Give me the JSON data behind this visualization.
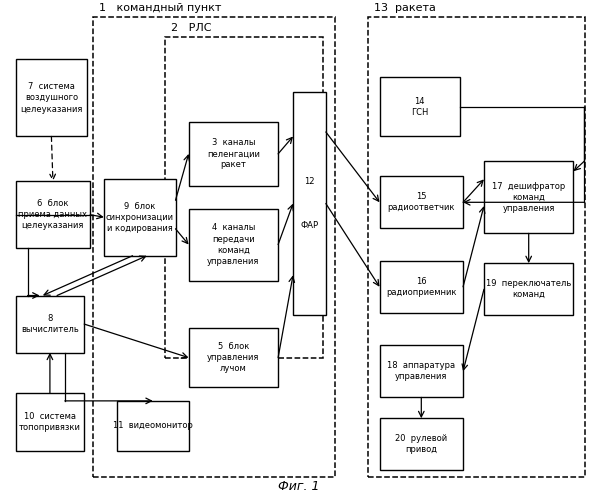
{
  "title": "Фиг. 1",
  "bg_color": "#ffffff",
  "outer_kp": [
    0.155,
    0.045,
    0.405,
    0.925
  ],
  "outer_rls": [
    0.275,
    0.285,
    0.265,
    0.645
  ],
  "outer_rkt": [
    0.615,
    0.045,
    0.365,
    0.925
  ],
  "label_kp": "1   командный пункт",
  "label_rls": "2   РЛС",
  "label_rkt": "13  ракета",
  "boxes": {
    "7": [
      0.025,
      0.73,
      0.12,
      0.155,
      "7  система\nвоздушного\nцелеуказания"
    ],
    "6": [
      0.025,
      0.505,
      0.125,
      0.135,
      "6  блок\nприема данных\nцелеуказания"
    ],
    "9": [
      0.173,
      0.49,
      0.12,
      0.155,
      "9  блок\nсинхронизации\nи кодирования"
    ],
    "8": [
      0.025,
      0.295,
      0.115,
      0.115,
      "8\nвычислитель"
    ],
    "10": [
      0.025,
      0.098,
      0.115,
      0.115,
      "10  система\nтопопривязки"
    ],
    "3": [
      0.315,
      0.63,
      0.15,
      0.13,
      "3  каналы\nпеленгации\nракет"
    ],
    "4": [
      0.315,
      0.44,
      0.15,
      0.145,
      "4  каналы\nпередачи\nкоманд\nуправления"
    ],
    "5": [
      0.315,
      0.225,
      0.15,
      0.12,
      "5  блок\nуправления\nлучом"
    ],
    "11": [
      0.195,
      0.098,
      0.12,
      0.1,
      "11  видеомонитор"
    ],
    "12": [
      0.49,
      0.37,
      0.055,
      0.45,
      "12\n\n\n\nФАР"
    ],
    "14": [
      0.635,
      0.73,
      0.135,
      0.12,
      "14\nГСН"
    ],
    "15": [
      0.635,
      0.545,
      0.14,
      0.105,
      "15\nрадиоответчик"
    ],
    "16": [
      0.635,
      0.375,
      0.14,
      0.105,
      "16\nрадиоприемник"
    ],
    "17": [
      0.81,
      0.535,
      0.15,
      0.145,
      "17  дешифратор\nкоманд\nуправления"
    ],
    "18": [
      0.635,
      0.205,
      0.14,
      0.105,
      "18  аппаратура\nуправления"
    ],
    "19": [
      0.81,
      0.37,
      0.15,
      0.105,
      "19  переключатель\nкоманд"
    ],
    "20": [
      0.635,
      0.058,
      0.14,
      0.105,
      "20  рулевой\nпривод"
    ]
  }
}
